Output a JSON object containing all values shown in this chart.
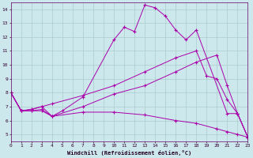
{
  "xlabel": "Windchill (Refroidissement éolien,°C)",
  "xlim": [
    0,
    23
  ],
  "ylim": [
    4.5,
    14.5
  ],
  "xticks": [
    0,
    1,
    2,
    3,
    4,
    5,
    6,
    7,
    8,
    9,
    10,
    11,
    12,
    13,
    14,
    15,
    16,
    17,
    18,
    19,
    20,
    21,
    22,
    23
  ],
  "yticks": [
    5,
    6,
    7,
    8,
    9,
    10,
    11,
    12,
    13,
    14
  ],
  "background_color": "#cce8ec",
  "line_color": "#aa00aa",
  "grid_color": "#aacccc",
  "lines": [
    {
      "x": [
        0,
        1,
        2,
        3,
        4,
        5,
        7,
        10,
        11,
        12,
        13,
        14,
        15,
        16,
        17,
        18,
        21,
        22,
        23
      ],
      "y": [
        8.0,
        6.7,
        6.7,
        6.8,
        6.3,
        6.7,
        7.7,
        11.8,
        12.7,
        12.4,
        14.3,
        14.1,
        13.5,
        12.5,
        11.8,
        12.5,
        6.5,
        6.5,
        4.8
      ]
    },
    {
      "x": [
        0,
        1,
        2,
        3,
        4,
        7,
        10,
        13,
        16,
        18,
        19,
        20,
        21,
        22,
        23
      ],
      "y": [
        8.0,
        6.7,
        6.8,
        7.0,
        7.2,
        7.8,
        8.5,
        9.5,
        10.5,
        11.0,
        9.2,
        9.0,
        7.5,
        6.5,
        4.8
      ]
    },
    {
      "x": [
        0,
        1,
        2,
        3,
        4,
        7,
        10,
        13,
        16,
        18,
        20,
        21,
        22,
        23
      ],
      "y": [
        8.0,
        6.7,
        6.8,
        7.0,
        6.3,
        7.0,
        7.9,
        8.5,
        9.5,
        10.2,
        10.7,
        8.5,
        6.5,
        4.8
      ]
    },
    {
      "x": [
        0,
        1,
        2,
        3,
        4,
        7,
        10,
        13,
        16,
        18,
        20,
        21,
        22,
        23
      ],
      "y": [
        8.0,
        6.7,
        6.7,
        6.7,
        6.3,
        6.6,
        6.6,
        6.4,
        6.0,
        5.8,
        5.4,
        5.2,
        5.0,
        4.8
      ]
    }
  ]
}
